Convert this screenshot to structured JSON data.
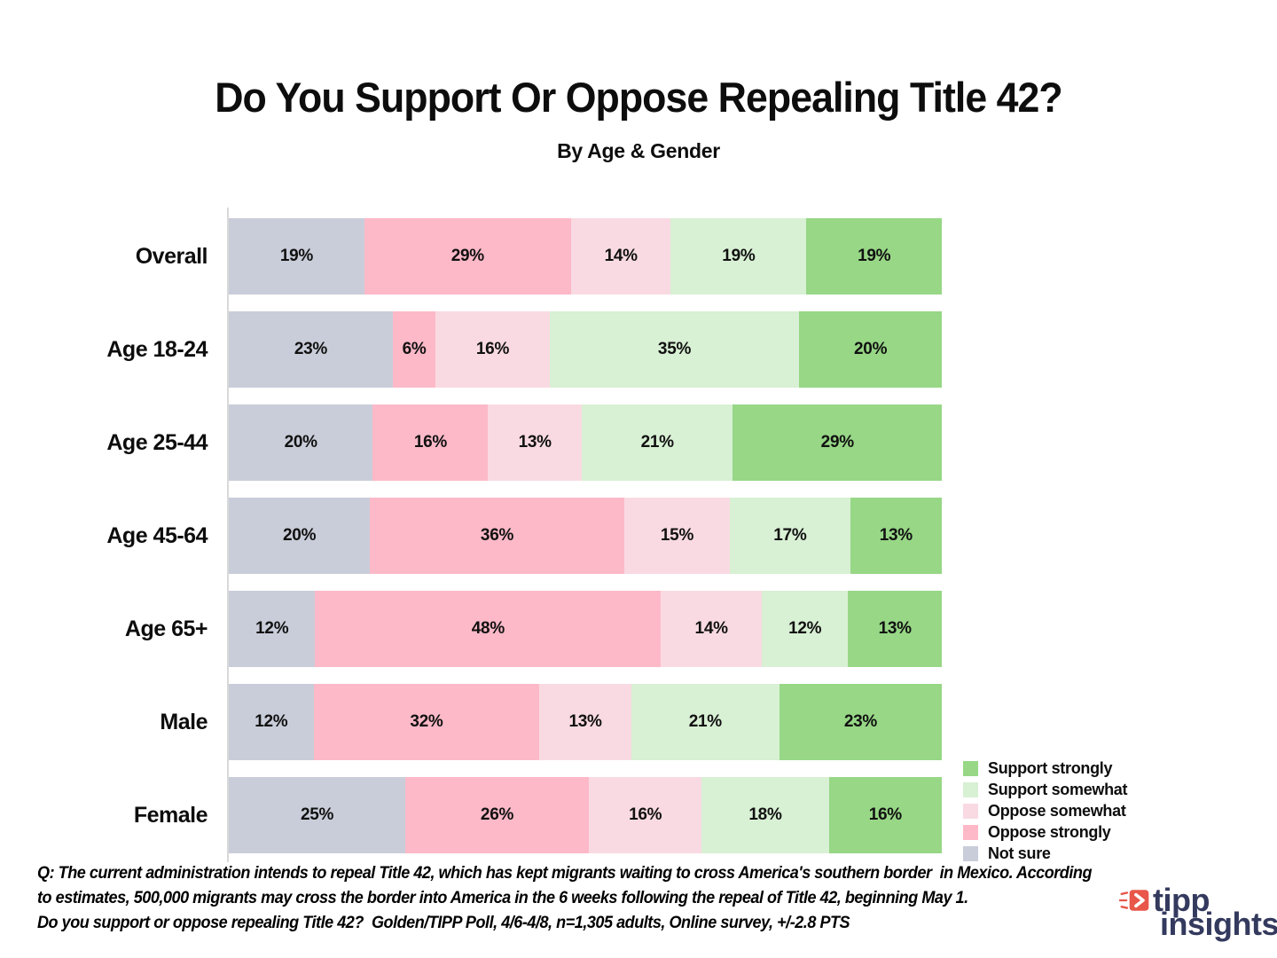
{
  "chart_data": {
    "type": "bar",
    "orientation": "horizontal",
    "stacked": true,
    "normalized_to_100": true,
    "grid": false,
    "unit": "%",
    "title": "Do You Support Or Oppose Repealing Title 42?",
    "subtitle": "By Age & Gender",
    "xlim": [
      0,
      100
    ],
    "categories": [
      "Overall",
      "Age 18-24",
      "Age 25-44",
      "Age 45-64",
      "Age 65+",
      "Male",
      "Female"
    ],
    "series": [
      {
        "name": "Not sure",
        "color": "#c9cdd9",
        "values": [
          19,
          23,
          20,
          20,
          12,
          12,
          25
        ]
      },
      {
        "name": "Oppose strongly",
        "color": "#fdb9c8",
        "values": [
          29,
          6,
          16,
          36,
          48,
          32,
          26
        ]
      },
      {
        "name": "Oppose somewhat",
        "color": "#f9dae2",
        "values": [
          14,
          16,
          13,
          15,
          14,
          13,
          16
        ]
      },
      {
        "name": "Support somewhat",
        "color": "#d8f0d4",
        "values": [
          19,
          35,
          21,
          17,
          12,
          21,
          18
        ]
      },
      {
        "name": "Support strongly",
        "color": "#97d786",
        "values": [
          19,
          20,
          29,
          13,
          13,
          23,
          16
        ]
      }
    ],
    "legend": {
      "position": "bottom-right",
      "entries": [
        {
          "label": "Support strongly",
          "color": "#97d786"
        },
        {
          "label": "Support somewhat",
          "color": "#d8f0d4"
        },
        {
          "label": "Oppose somewhat",
          "color": "#f9dae2"
        },
        {
          "label": "Oppose strongly",
          "color": "#fdb9c8"
        },
        {
          "label": "Not sure",
          "color": "#c9cdd9"
        }
      ]
    }
  },
  "footer": {
    "lines": [
      "Q: The current administration intends to repeal Title 42, which has kept migrants waiting to cross America's southern border  in Mexico. According",
      "to estimates, 500,000 migrants may cross the border into America in the 6 weeks following the repeal of Title 42, beginning May 1.",
      "Do you support or oppose repealing Title 42?  Golden/TIPP Poll, 4/6-4/8, n=1,305 adults, Online survey, +/-2.8 PTS"
    ]
  },
  "logo": {
    "word1": "tipp",
    "word2": "insights",
    "accent_color": "#e85749",
    "text_color": "#343a5e"
  }
}
